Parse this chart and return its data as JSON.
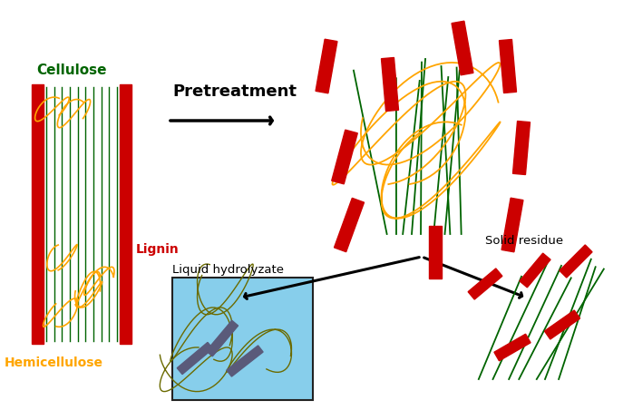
{
  "title": "Pretreatment",
  "label_cellulose": "Cellulose",
  "label_lignin": "Lignin",
  "label_hemicellulose": "Hemicellulose",
  "label_liquid": "Liquid hydrolyzate",
  "label_solid": "Solid residue",
  "color_cellulose": "#006400",
  "color_lignin": "#CC0000",
  "color_hemicellulose": "#FFA500",
  "color_background": "#FFFFFF",
  "color_liquid_box": "#87CEEB",
  "color_olive": "#6B6B00",
  "color_gray_bar": "#5A5A7A",
  "figsize": [
    6.87,
    4.64
  ],
  "dpi": 100
}
